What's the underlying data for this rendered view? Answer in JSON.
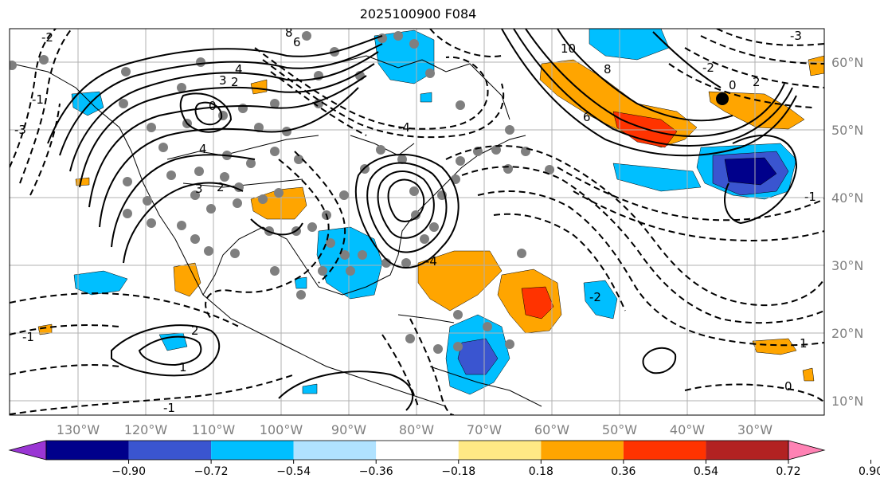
{
  "title": "2025100900 F084",
  "lon_labels": [
    "130°W",
    "120°W",
    "110°W",
    "100°W",
    "90°W",
    "80°W",
    "70°W",
    "60°W",
    "50°W",
    "40°W",
    "30°W"
  ],
  "lat_labels": [
    "60°N",
    "50°N",
    "40°N",
    "30°N",
    "20°N",
    "10°N"
  ],
  "colorbar": {
    "ticks": [
      "−0.90",
      "−0.72",
      "−0.54",
      "−0.36",
      "−0.18",
      "0.18",
      "0.36",
      "0.54",
      "0.72",
      "0.90"
    ],
    "colors": [
      "#9a36d4",
      "#00008b",
      "#3a55d0",
      "#00bfff",
      "#b0e2ff",
      "#ffffff",
      "#ffe985",
      "#ffa500",
      "#ff3300",
      "#b22222",
      "#ff82b4"
    ]
  },
  "contour_labels": [
    "8",
    "6",
    "4",
    "3",
    "2",
    "0",
    "-1",
    "-2",
    "-3",
    "-4",
    "2",
    "3",
    "4",
    "1",
    "10",
    "8",
    "6",
    "2",
    "0",
    "-2",
    "-1",
    "-4",
    "-2",
    "-1",
    "2",
    "1",
    "0",
    "-1",
    "-3"
  ]
}
